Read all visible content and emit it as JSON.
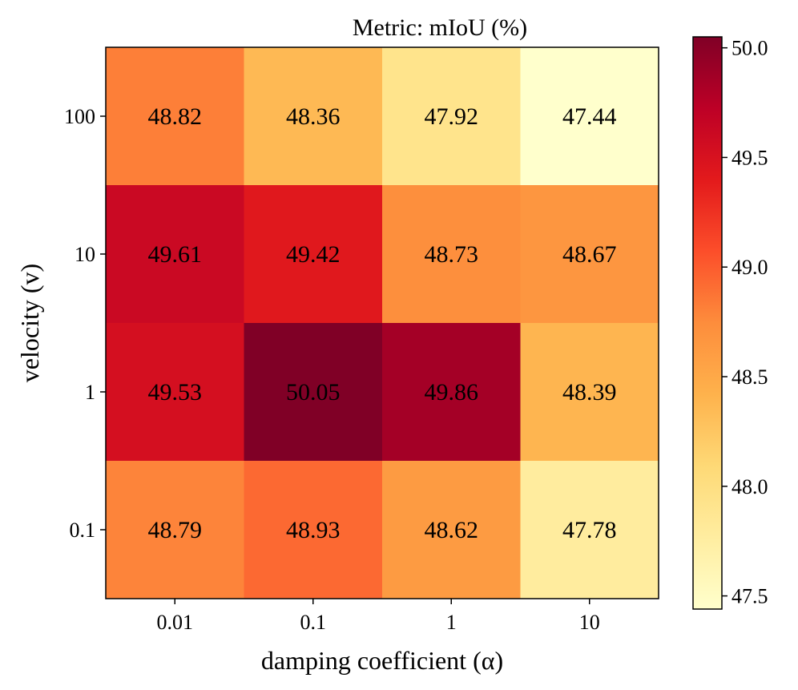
{
  "chart_data": {
    "type": "heatmap",
    "title": "Metric: mIoU (%)",
    "xlabel": "damping coefficient (α)",
    "ylabel": "velocity (v)",
    "x_categories": [
      "0.01",
      "0.1",
      "1",
      "10"
    ],
    "y_categories": [
      "100",
      "10",
      "1",
      "0.1"
    ],
    "values": [
      [
        48.82,
        48.36,
        47.92,
        47.44
      ],
      [
        49.61,
        49.42,
        48.73,
        48.67
      ],
      [
        49.53,
        50.05,
        49.86,
        48.39
      ],
      [
        48.79,
        48.93,
        48.62,
        47.78
      ]
    ],
    "value_labels": [
      [
        "48.82",
        "48.36",
        "47.92",
        "47.44"
      ],
      [
        "49.61",
        "49.42",
        "48.73",
        "48.67"
      ],
      [
        "49.53",
        "50.05",
        "49.86",
        "48.39"
      ],
      [
        "48.79",
        "48.93",
        "48.62",
        "47.78"
      ]
    ],
    "colormap": "YlOrRd",
    "colorbar": {
      "min": 47.44,
      "max": 50.05,
      "ticks": [
        47.5,
        48.0,
        48.5,
        49.0,
        49.5,
        50.0
      ],
      "tick_labels": [
        "47.5",
        "48.0",
        "48.5",
        "49.0",
        "49.5",
        "50.0"
      ]
    }
  }
}
